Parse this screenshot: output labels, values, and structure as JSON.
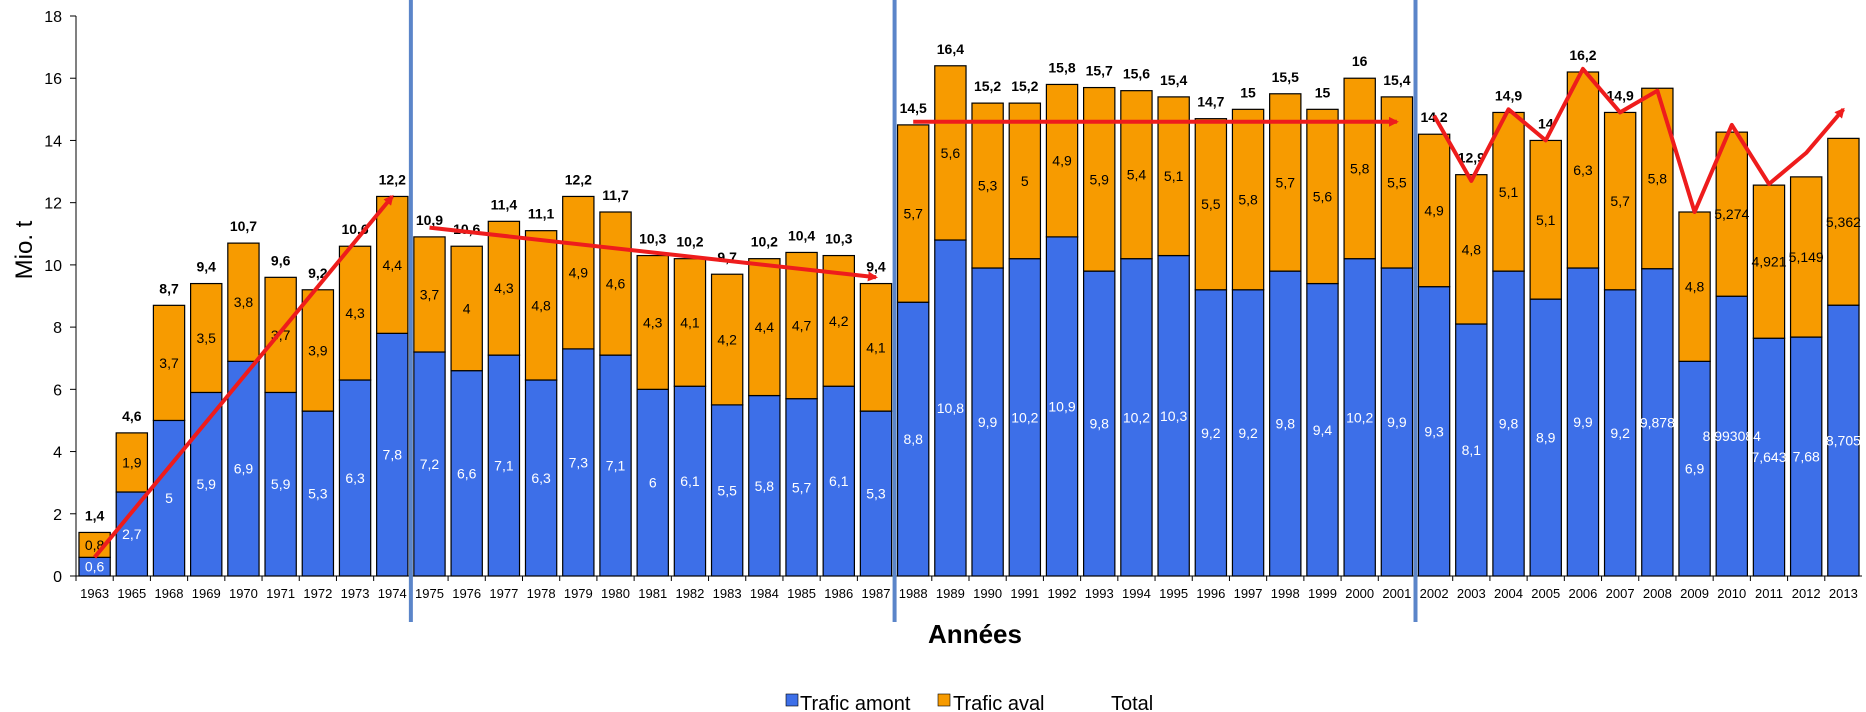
{
  "chart_data": {
    "type": "bar",
    "stacked": true,
    "xlabel": "Années",
    "ylabel": "Mio. t",
    "ylim": [
      0,
      18
    ],
    "y_ticks": [
      0,
      2,
      4,
      6,
      8,
      10,
      12,
      14,
      16,
      18
    ],
    "categories": [
      "1963",
      "1965",
      "1968",
      "1969",
      "1970",
      "1971",
      "1972",
      "1973",
      "1974",
      "1975",
      "1976",
      "1977",
      "1978",
      "1979",
      "1980",
      "1981",
      "1982",
      "1983",
      "1984",
      "1985",
      "1986",
      "1987",
      "1988",
      "1989",
      "1990",
      "1991",
      "1992",
      "1993",
      "1994",
      "1995",
      "1996",
      "1997",
      "1998",
      "1999",
      "2000",
      "2001",
      "2002",
      "2003",
      "2004",
      "2005",
      "2006",
      "2007",
      "2008",
      "2009",
      "2010",
      "2011",
      "2012",
      "2013"
    ],
    "series": [
      {
        "name": "Trafic amont",
        "color": "#3d6fe8",
        "values": [
          0.6,
          2.7,
          5,
          5.9,
          6.9,
          5.9,
          5.3,
          6.3,
          7.8,
          7.2,
          6.6,
          7.1,
          6.3,
          7.3,
          7.1,
          6,
          6.1,
          5.5,
          5.8,
          5.7,
          6.1,
          5.3,
          8.8,
          10.8,
          9.9,
          10.2,
          10.9,
          9.8,
          10.2,
          10.3,
          9.2,
          9.2,
          9.8,
          9.4,
          10.2,
          9.9,
          9.3,
          8.1,
          9.8,
          8.9,
          9.9,
          9.2,
          9.878,
          6.9,
          8.993084,
          7.643,
          7.68,
          8.705
        ],
        "labels": [
          "0,6",
          "2,7",
          "5",
          "5,9",
          "6,9",
          "5,9",
          "5,3",
          "6,3",
          "7,8",
          "7,2",
          "6,6",
          "7,1",
          "6,3",
          "7,3",
          "7,1",
          "6",
          "6,1",
          "5,5",
          "5,8",
          "5,7",
          "6,1",
          "5,3",
          "8,8",
          "10,8",
          "9,9",
          "10,2",
          "10,9",
          "9,8",
          "10,2",
          "10,3",
          "9,2",
          "9,2",
          "9,8",
          "9,4",
          "10,2",
          "9,9",
          "9,3",
          "8,1",
          "9,8",
          "8,9",
          "9,9",
          "9,2",
          "9,878",
          "6,9",
          "8,993084",
          "7,643",
          "7,68",
          "8,705"
        ]
      },
      {
        "name": "Trafic aval",
        "color": "#f79b00",
        "values": [
          0.8,
          1.9,
          3.7,
          3.5,
          3.8,
          3.7,
          3.9,
          4.3,
          4.4,
          3.7,
          4,
          4.3,
          4.8,
          4.9,
          4.6,
          4.3,
          4.1,
          4.2,
          4.4,
          4.7,
          4.2,
          4.1,
          5.7,
          5.6,
          5.3,
          5,
          4.9,
          5.9,
          5.4,
          5.1,
          5.5,
          5.8,
          5.7,
          5.6,
          5.8,
          5.5,
          4.9,
          4.8,
          5.1,
          5.1,
          6.3,
          5.7,
          5.8,
          4.8,
          5.274,
          4.921,
          5.149,
          5.362
        ],
        "labels": [
          "0,8",
          "1,9",
          "3,7",
          "3,5",
          "3,8",
          "3,7",
          "3,9",
          "4,3",
          "4,4",
          "3,7",
          "4",
          "4,3",
          "4,8",
          "4,9",
          "4,6",
          "4,3",
          "4,1",
          "4,2",
          "4,4",
          "4,7",
          "4,2",
          "4,1",
          "5,7",
          "5,6",
          "5,3",
          "5",
          "4,9",
          "5,9",
          "5,4",
          "5,1",
          "5,5",
          "5,8",
          "5,7",
          "5,6",
          "5,8",
          "5,5",
          "4,9",
          "4,8",
          "5,1",
          "5,1",
          "6,3",
          "5,7",
          "5,8",
          "4,8",
          "5,274",
          "4,921",
          "5,149",
          "5,362"
        ]
      },
      {
        "name": "Total",
        "labels": [
          "1,4",
          "4,6",
          "8,7",
          "9,4",
          "10,7",
          "9,6",
          "9,2",
          "10,6",
          "12,2",
          "10,9",
          "10,6",
          "11,4",
          "11,1",
          "12,2",
          "11,7",
          "10,3",
          "10,2",
          "9,7",
          "10,2",
          "10,4",
          "10,3",
          "9,4",
          "14,5",
          "16,4",
          "15,2",
          "15,2",
          "15,8",
          "15,7",
          "15,6",
          "15,4",
          "14,7",
          "15",
          "15,5",
          "15",
          "16",
          "15,4",
          "14,2",
          "12,9",
          "14,9",
          "14",
          "16,2",
          "14,9",
          "",
          "",
          "",
          "",
          "",
          ""
        ]
      }
    ],
    "period_dividers_after": [
      "1974",
      "1987",
      "2001"
    ],
    "trend_lines": [
      {
        "from": {
          "x": "1963",
          "y": 0.6
        },
        "to": {
          "x": "1974",
          "y": 12.2
        }
      },
      {
        "from": {
          "x": "1975",
          "y": 11.2
        },
        "to": {
          "x": "1987",
          "y": 9.6
        }
      },
      {
        "from": {
          "x": "1988",
          "y": 14.6
        },
        "to": {
          "x": "2001",
          "y": 14.6
        }
      },
      {
        "points": [
          [
            "2002",
            14.8
          ],
          [
            "2003",
            12.7
          ],
          [
            "2004",
            15.0
          ],
          [
            "2005",
            14.0
          ],
          [
            "2006",
            16.3
          ],
          [
            "2007",
            14.9
          ],
          [
            "2008",
            15.6
          ],
          [
            "2009",
            11.7
          ],
          [
            "2010",
            14.5
          ],
          [
            "2011",
            12.6
          ],
          [
            "2012",
            13.6
          ],
          [
            "2013",
            15.0
          ]
        ]
      }
    ],
    "colors": {
      "divider": "#5b85c9",
      "trend": "#ee1c1c"
    },
    "legend_position": "bottom",
    "grid": false
  }
}
